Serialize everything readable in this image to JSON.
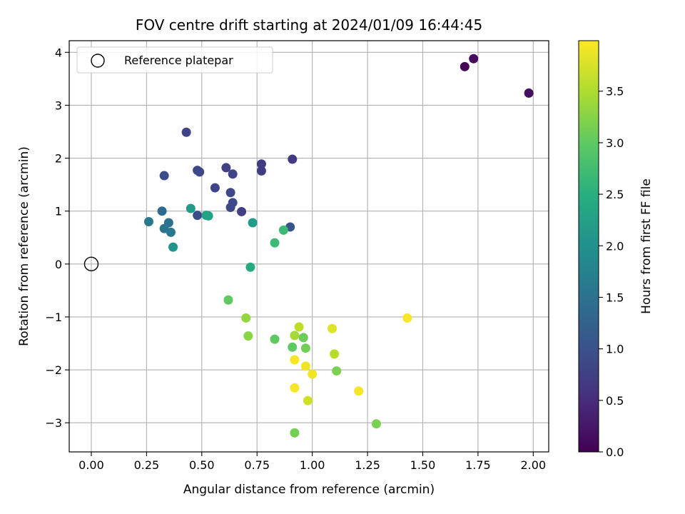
{
  "chart_data": {
    "type": "scatter",
    "title": "FOV centre drift starting at 2024/01/09 16:44:45",
    "xlabel": "Angular distance from reference (arcmin)",
    "ylabel": "Rotation from reference (arcmin)",
    "xlim": [
      -0.1,
      2.07
    ],
    "ylim": [
      -3.55,
      4.22
    ],
    "xticks": [
      0.0,
      0.25,
      0.5,
      0.75,
      1.0,
      1.25,
      1.5,
      1.75,
      2.0
    ],
    "xtick_labels": [
      "0.00",
      "0.25",
      "0.50",
      "0.75",
      "1.00",
      "1.25",
      "1.50",
      "1.75",
      "2.00"
    ],
    "yticks": [
      -3,
      -2,
      -1,
      0,
      1,
      2,
      3,
      4
    ],
    "ytick_labels": [
      "−3",
      "−2",
      "−1",
      "0",
      "1",
      "2",
      "3",
      "4"
    ],
    "grid": true,
    "legend": {
      "position": "top-left",
      "entries": [
        "Reference platepar"
      ]
    },
    "reference_point": {
      "x": 0.0,
      "y": 0.0,
      "marker": "hollow-circle"
    },
    "colorbar": {
      "label": "Hours from first FF file",
      "colormap": "viridis",
      "range": [
        0.0,
        3.99
      ],
      "ticks": [
        0.0,
        0.5,
        1.0,
        1.5,
        2.0,
        2.5,
        3.0,
        3.5
      ],
      "tick_labels": [
        "0.0",
        "0.5",
        "1.0",
        "1.5",
        "2.0",
        "2.5",
        "3.0",
        "3.5"
      ]
    },
    "points": [
      {
        "x": 1.69,
        "y": 3.73,
        "c": 0.05
      },
      {
        "x": 1.73,
        "y": 3.88,
        "c": 0.1
      },
      {
        "x": 1.98,
        "y": 3.23,
        "c": 0.15
      },
      {
        "x": 0.43,
        "y": 2.49,
        "c": 0.8
      },
      {
        "x": 0.33,
        "y": 1.67,
        "c": 0.95
      },
      {
        "x": 0.48,
        "y": 1.77,
        "c": 0.85
      },
      {
        "x": 0.49,
        "y": 1.74,
        "c": 0.88
      },
      {
        "x": 0.61,
        "y": 1.82,
        "c": 0.75
      },
      {
        "x": 0.64,
        "y": 1.7,
        "c": 0.8
      },
      {
        "x": 0.77,
        "y": 1.89,
        "c": 0.7
      },
      {
        "x": 0.77,
        "y": 1.76,
        "c": 0.72
      },
      {
        "x": 0.91,
        "y": 1.98,
        "c": 0.7
      },
      {
        "x": 0.56,
        "y": 1.44,
        "c": 0.8
      },
      {
        "x": 0.63,
        "y": 1.35,
        "c": 0.85
      },
      {
        "x": 0.64,
        "y": 1.16,
        "c": 0.9
      },
      {
        "x": 0.63,
        "y": 1.07,
        "c": 0.88
      },
      {
        "x": 0.68,
        "y": 0.99,
        "c": 0.75
      },
      {
        "x": 0.48,
        "y": 0.92,
        "c": 0.95
      },
      {
        "x": 0.9,
        "y": 0.7,
        "c": 1.05
      },
      {
        "x": 0.32,
        "y": 1.0,
        "c": 1.4
      },
      {
        "x": 0.26,
        "y": 0.8,
        "c": 1.6
      },
      {
        "x": 0.35,
        "y": 0.78,
        "c": 1.5
      },
      {
        "x": 0.33,
        "y": 0.67,
        "c": 1.55
      },
      {
        "x": 0.36,
        "y": 0.6,
        "c": 1.6
      },
      {
        "x": 0.37,
        "y": 0.32,
        "c": 2.05
      },
      {
        "x": 0.45,
        "y": 1.05,
        "c": 2.2
      },
      {
        "x": 0.52,
        "y": 0.92,
        "c": 2.3
      },
      {
        "x": 0.53,
        "y": 0.91,
        "c": 2.3
      },
      {
        "x": 0.73,
        "y": 0.78,
        "c": 2.2
      },
      {
        "x": 0.87,
        "y": 0.64,
        "c": 2.7
      },
      {
        "x": 0.83,
        "y": 0.4,
        "c": 2.7
      },
      {
        "x": 0.72,
        "y": -0.06,
        "c": 2.45
      },
      {
        "x": 0.62,
        "y": -0.68,
        "c": 3.0
      },
      {
        "x": 0.7,
        "y": -1.02,
        "c": 3.35
      },
      {
        "x": 0.71,
        "y": -1.36,
        "c": 3.3
      },
      {
        "x": 0.83,
        "y": -1.42,
        "c": 3.0
      },
      {
        "x": 0.92,
        "y": -1.35,
        "c": 3.45
      },
      {
        "x": 0.94,
        "y": -1.19,
        "c": 3.6
      },
      {
        "x": 0.96,
        "y": -1.39,
        "c": 3.1
      },
      {
        "x": 0.91,
        "y": -1.57,
        "c": 3.0
      },
      {
        "x": 0.97,
        "y": -1.59,
        "c": 3.15
      },
      {
        "x": 0.92,
        "y": -1.81,
        "c": 3.95
      },
      {
        "x": 0.97,
        "y": -1.93,
        "c": 3.9
      },
      {
        "x": 1.0,
        "y": -2.08,
        "c": 3.9
      },
      {
        "x": 1.09,
        "y": -1.22,
        "c": 3.8
      },
      {
        "x": 1.1,
        "y": -1.7,
        "c": 3.55
      },
      {
        "x": 1.11,
        "y": -2.02,
        "c": 3.2
      },
      {
        "x": 1.21,
        "y": -2.4,
        "c": 3.95
      },
      {
        "x": 1.43,
        "y": -1.02,
        "c": 3.95
      },
      {
        "x": 0.92,
        "y": -2.34,
        "c": 3.95
      },
      {
        "x": 0.98,
        "y": -2.58,
        "c": 3.7
      },
      {
        "x": 1.29,
        "y": -3.02,
        "c": 3.2
      },
      {
        "x": 0.92,
        "y": -3.19,
        "c": 3.15
      }
    ]
  }
}
